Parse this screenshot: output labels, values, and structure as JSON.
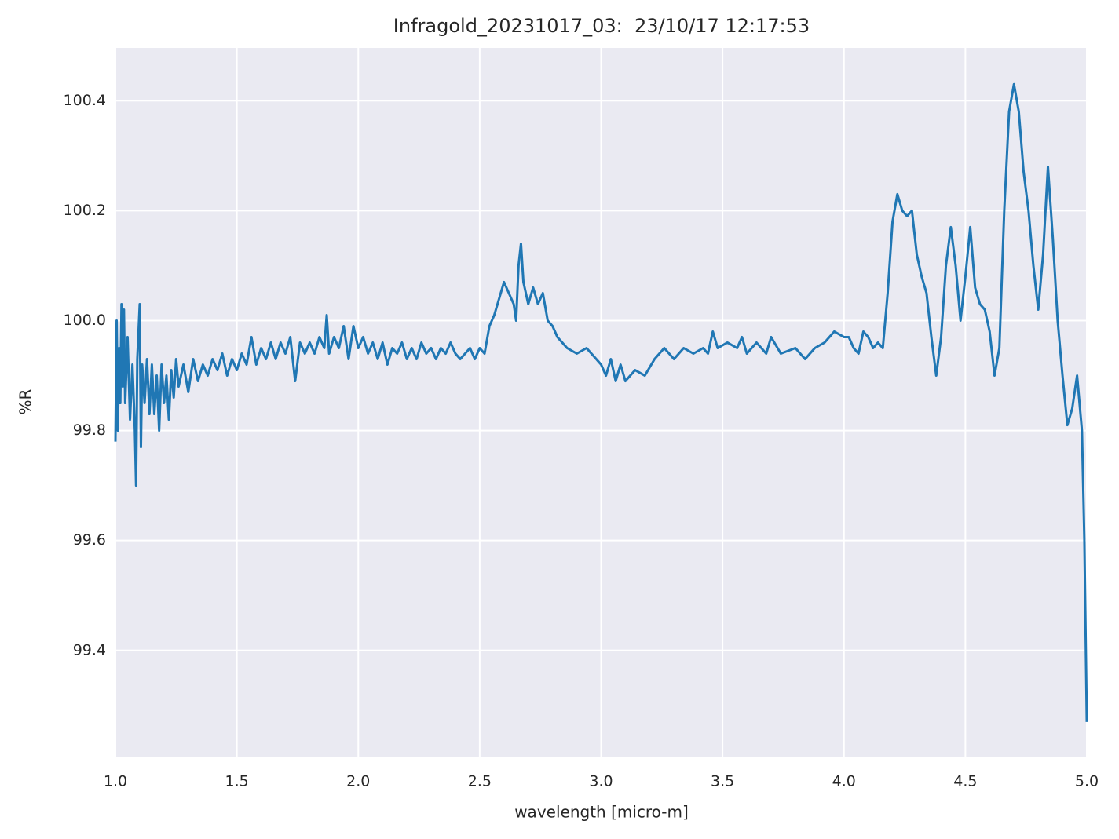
{
  "chart_data": {
    "type": "line",
    "title": "Infragold_20231017_03:  23/10/17 12:17:53",
    "x_label": "wavelength [micro-m]",
    "y_label": "%R",
    "color": "#2077b4",
    "grid": true,
    "xlim": [
      1.0,
      5.0
    ],
    "ylim": [
      99.207,
      100.496
    ],
    "xticks": [
      {
        "value": 1,
        "label": "1.0"
      },
      1.5,
      {
        "value": 2,
        "label": "2.0"
      },
      2.5,
      {
        "value": 3,
        "label": "3.0"
      },
      3.5,
      {
        "value": 4,
        "label": "4.0"
      },
      4.5,
      {
        "value": 5,
        "label": "5.0"
      }
    ],
    "yticks": [
      99.4,
      99.6,
      99.8,
      {
        "value": 100,
        "label": "100.0"
      },
      100.2,
      100.4
    ],
    "x": [
      1.0,
      1.005,
      1.01,
      1.015,
      1.02,
      1.025,
      1.03,
      1.035,
      1.04,
      1.05,
      1.06,
      1.07,
      1.08,
      1.085,
      1.09,
      1.1,
      1.105,
      1.11,
      1.12,
      1.13,
      1.14,
      1.15,
      1.16,
      1.17,
      1.18,
      1.19,
      1.2,
      1.21,
      1.22,
      1.23,
      1.24,
      1.25,
      1.26,
      1.28,
      1.3,
      1.32,
      1.34,
      1.36,
      1.38,
      1.4,
      1.42,
      1.44,
      1.46,
      1.48,
      1.5,
      1.52,
      1.54,
      1.56,
      1.58,
      1.6,
      1.62,
      1.64,
      1.66,
      1.68,
      1.7,
      1.72,
      1.74,
      1.76,
      1.78,
      1.8,
      1.82,
      1.84,
      1.86,
      1.87,
      1.88,
      1.9,
      1.92,
      1.94,
      1.96,
      1.98,
      2.0,
      2.02,
      2.04,
      2.06,
      2.08,
      2.1,
      2.12,
      2.14,
      2.16,
      2.18,
      2.2,
      2.22,
      2.24,
      2.26,
      2.28,
      2.3,
      2.32,
      2.34,
      2.36,
      2.38,
      2.4,
      2.42,
      2.44,
      2.46,
      2.48,
      2.5,
      2.52,
      2.54,
      2.56,
      2.58,
      2.6,
      2.62,
      2.64,
      2.65,
      2.66,
      2.67,
      2.68,
      2.7,
      2.72,
      2.74,
      2.76,
      2.78,
      2.8,
      2.82,
      2.84,
      2.86,
      2.9,
      2.94,
      2.98,
      3.0,
      3.02,
      3.04,
      3.06,
      3.08,
      3.1,
      3.14,
      3.18,
      3.22,
      3.26,
      3.3,
      3.34,
      3.38,
      3.42,
      3.44,
      3.46,
      3.48,
      3.52,
      3.56,
      3.58,
      3.6,
      3.64,
      3.68,
      3.7,
      3.74,
      3.8,
      3.84,
      3.88,
      3.92,
      3.96,
      4.0,
      4.02,
      4.04,
      4.06,
      4.08,
      4.1,
      4.12,
      4.14,
      4.16,
      4.18,
      4.2,
      4.22,
      4.24,
      4.26,
      4.28,
      4.3,
      4.32,
      4.34,
      4.36,
      4.38,
      4.4,
      4.42,
      4.44,
      4.46,
      4.48,
      4.5,
      4.52,
      4.54,
      4.56,
      4.58,
      4.6,
      4.62,
      4.64,
      4.66,
      4.68,
      4.7,
      4.72,
      4.74,
      4.76,
      4.78,
      4.8,
      4.82,
      4.84,
      4.86,
      4.88,
      4.9,
      4.92,
      4.94,
      4.96,
      4.98,
      4.99,
      5.0
    ],
    "values": [
      99.78,
      100.0,
      99.8,
      99.95,
      99.85,
      100.03,
      99.88,
      100.02,
      99.85,
      99.97,
      99.82,
      99.92,
      99.8,
      99.7,
      99.93,
      100.03,
      99.77,
      99.92,
      99.85,
      99.93,
      99.83,
      99.92,
      99.83,
      99.9,
      99.8,
      99.92,
      99.85,
      99.9,
      99.82,
      99.91,
      99.86,
      99.93,
      99.88,
      99.92,
      99.87,
      99.93,
      99.89,
      99.92,
      99.9,
      99.93,
      99.91,
      99.94,
      99.9,
      99.93,
      99.91,
      99.94,
      99.92,
      99.97,
      99.92,
      99.95,
      99.93,
      99.96,
      99.93,
      99.96,
      99.94,
      99.97,
      99.89,
      99.96,
      99.94,
      99.96,
      99.94,
      99.97,
      99.95,
      100.01,
      99.94,
      99.97,
      99.95,
      99.99,
      99.93,
      99.99,
      99.95,
      99.97,
      99.94,
      99.96,
      99.93,
      99.96,
      99.92,
      99.95,
      99.94,
      99.96,
      99.93,
      99.95,
      99.93,
      99.96,
      99.94,
      99.95,
      99.93,
      99.95,
      99.94,
      99.96,
      99.94,
      99.93,
      99.94,
      99.95,
      99.93,
      99.95,
      99.94,
      99.99,
      100.01,
      100.04,
      100.07,
      100.05,
      100.03,
      100.0,
      100.1,
      100.14,
      100.07,
      100.03,
      100.06,
      100.03,
      100.05,
      100.0,
      99.99,
      99.97,
      99.96,
      99.95,
      99.94,
      99.95,
      99.93,
      99.92,
      99.9,
      99.93,
      99.89,
      99.92,
      99.89,
      99.91,
      99.9,
      99.93,
      99.95,
      99.93,
      99.95,
      99.94,
      99.95,
      99.94,
      99.98,
      99.95,
      99.96,
      99.95,
      99.97,
      99.94,
      99.96,
      99.94,
      99.97,
      99.94,
      99.95,
      99.93,
      99.95,
      99.96,
      99.98,
      99.97,
      99.97,
      99.95,
      99.94,
      99.98,
      99.97,
      99.95,
      99.96,
      99.95,
      100.05,
      100.18,
      100.23,
      100.2,
      100.19,
      100.2,
      100.12,
      100.08,
      100.05,
      99.97,
      99.9,
      99.97,
      100.1,
      100.17,
      100.1,
      100.0,
      100.08,
      100.17,
      100.06,
      100.03,
      100.02,
      99.98,
      99.9,
      99.95,
      100.2,
      100.38,
      100.43,
      100.38,
      100.27,
      100.2,
      100.1,
      100.02,
      100.12,
      100.28,
      100.15,
      100.0,
      99.9,
      99.81,
      99.84,
      99.9,
      99.8,
      99.6,
      99.27
    ]
  }
}
